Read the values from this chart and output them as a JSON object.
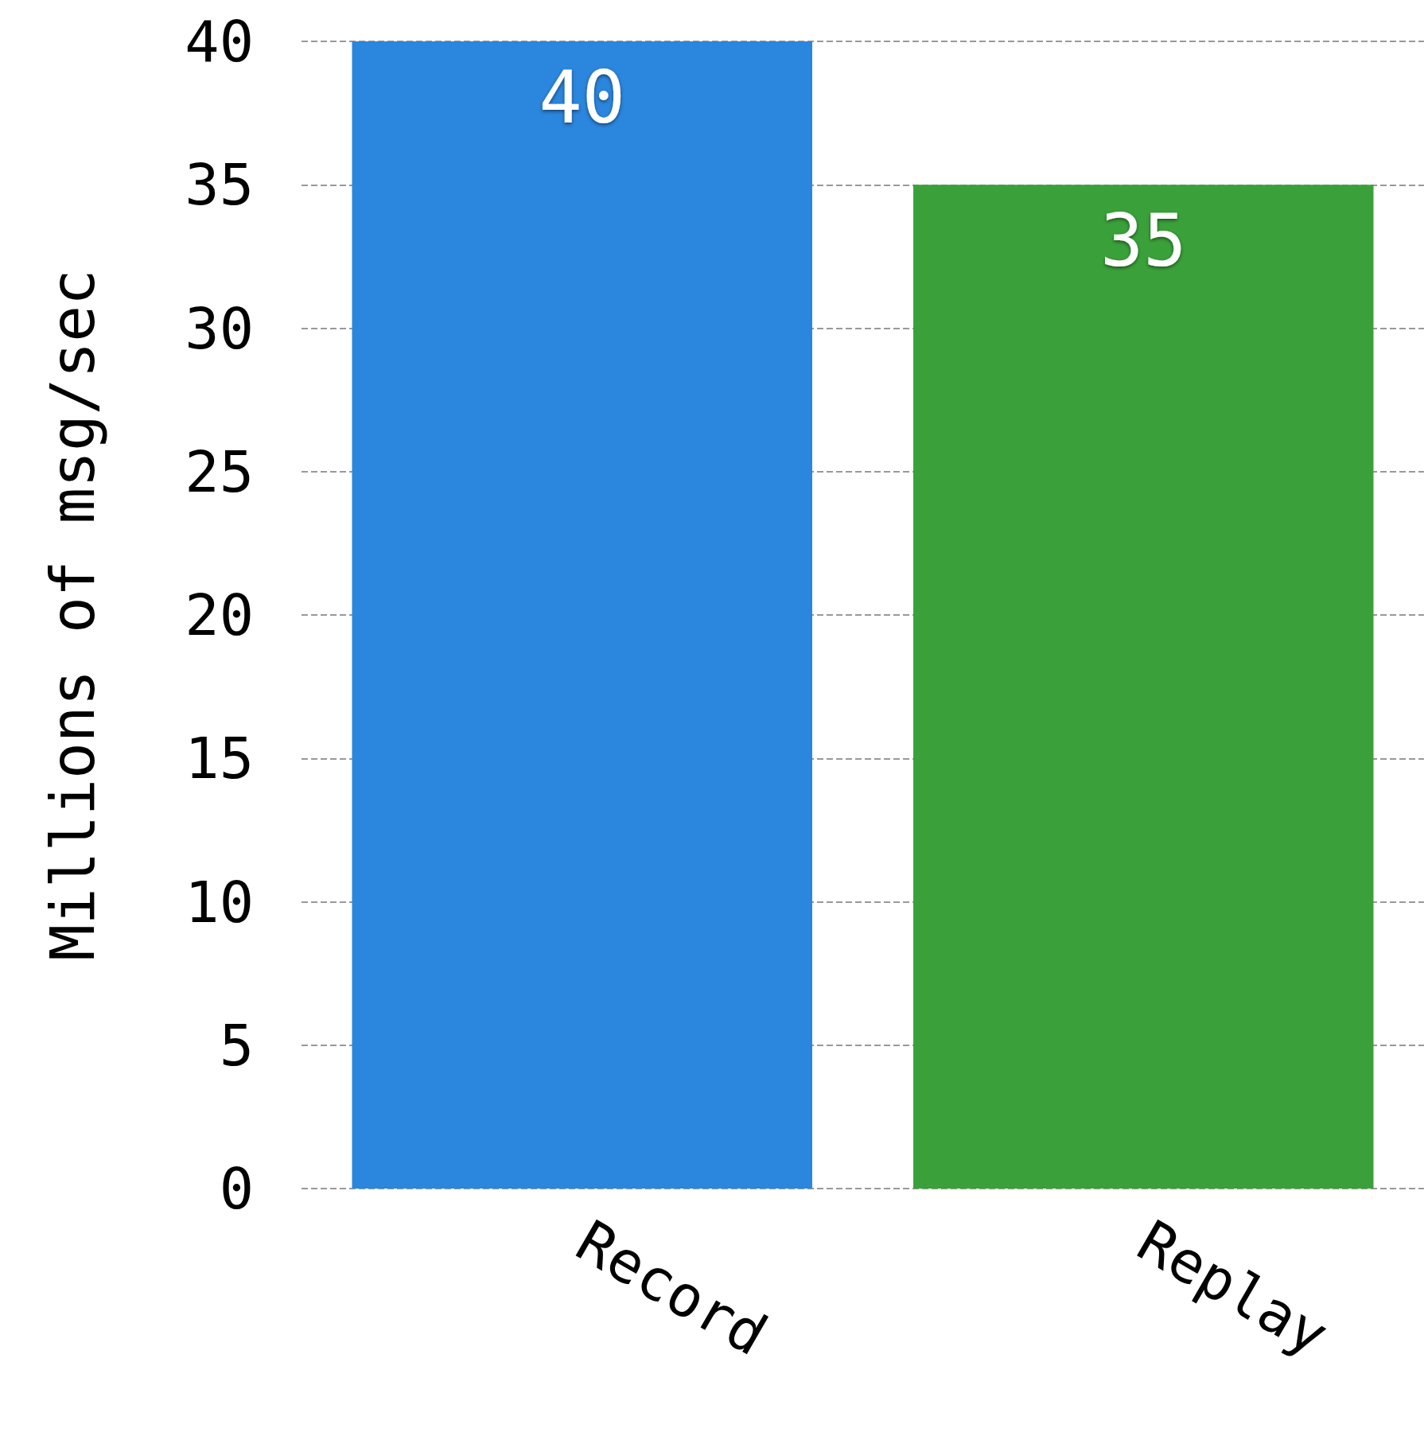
{
  "chart_data": {
    "type": "bar",
    "ylabel": "Millions of msg/sec",
    "categories": [
      "Record",
      "Replay"
    ],
    "values": [
      40,
      35
    ],
    "colors": [
      "#2b86de",
      "#3aa13a"
    ],
    "ylim": [
      0,
      40
    ],
    "yticks": [
      0,
      5,
      10,
      15,
      20,
      25,
      30,
      35,
      40
    ],
    "grid": "y",
    "data_labels": true
  }
}
